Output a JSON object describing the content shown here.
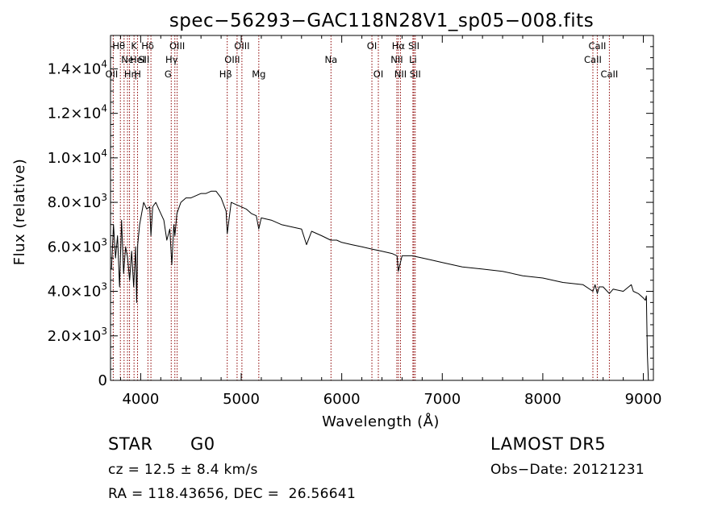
{
  "chart_data": {
    "type": "line",
    "title": "spec−56293−GAC118N28V1_sp05−008.fits",
    "xlabel": "Wavelength (Å)",
    "ylabel": "Flux (relative)",
    "xlim": [
      3700,
      9100
    ],
    "ylim": [
      0,
      15500
    ],
    "grid": false,
    "x_ticks": [
      4000,
      5000,
      6000,
      7000,
      8000,
      9000
    ],
    "x_tick_labels": [
      "4000",
      "5000",
      "6000",
      "7000",
      "8000",
      "9000"
    ],
    "y_ticks": [
      0,
      2000,
      4000,
      6000,
      8000,
      10000,
      12000,
      14000
    ],
    "y_tick_labels": [
      {
        "mant": "0",
        "exp": ""
      },
      {
        "mant": "2.0×10",
        "exp": "3"
      },
      {
        "mant": "4.0×10",
        "exp": "3"
      },
      {
        "mant": "6.0×10",
        "exp": "3"
      },
      {
        "mant": "8.0×10",
        "exp": "3"
      },
      {
        "mant": "1.0×10",
        "exp": "4"
      },
      {
        "mant": "1.2×10",
        "exp": "4"
      },
      {
        "mant": "1.4×10",
        "exp": "4"
      }
    ],
    "line_color": "#000000",
    "marker_color": "#8b0000",
    "series": [
      {
        "x": [
          3710,
          3730,
          3750,
          3770,
          3790,
          3810,
          3830,
          3850,
          3870,
          3890,
          3910,
          3930,
          3950,
          3960,
          3970,
          3990,
          4010,
          4030,
          4060,
          4090,
          4102,
          4120,
          4150,
          4180,
          4200,
          4230,
          4260,
          4290,
          4310,
          4330,
          4340,
          4360,
          4400,
          4450,
          4500,
          4550,
          4600,
          4650,
          4700,
          4750,
          4800,
          4850,
          4861,
          4900,
          4950,
          5000,
          5050,
          5100,
          5150,
          5175,
          5200,
          5300,
          5400,
          5500,
          5600,
          5650,
          5700,
          5800,
          5890,
          5950,
          6000,
          6100,
          6200,
          6300,
          6400,
          6500,
          6550,
          6563,
          6600,
          6700,
          6800,
          6900,
          7000,
          7200,
          7400,
          7600,
          7800,
          8000,
          8200,
          8400,
          8498,
          8520,
          8542,
          8560,
          8600,
          8662,
          8700,
          8800,
          8880,
          8900,
          8950,
          9000,
          9020,
          9030,
          9040,
          9050
        ],
        "y": [
          5000,
          7000,
          5500,
          6500,
          4200,
          7200,
          4800,
          6000,
          5500,
          4500,
          5800,
          4200,
          6000,
          3500,
          6100,
          7000,
          7500,
          8000,
          7700,
          7800,
          6500,
          7800,
          8000,
          7700,
          7500,
          7200,
          6300,
          6800,
          5200,
          7000,
          6500,
          7500,
          8000,
          8200,
          8200,
          8300,
          8400,
          8400,
          8500,
          8500,
          8200,
          7600,
          6600,
          8000,
          7900,
          7800,
          7700,
          7500,
          7400,
          6800,
          7300,
          7200,
          7000,
          6900,
          6800,
          6100,
          6700,
          6500,
          6300,
          6300,
          6200,
          6100,
          6000,
          5900,
          5800,
          5700,
          5600,
          4900,
          5600,
          5600,
          5500,
          5400,
          5300,
          5100,
          5000,
          4900,
          4700,
          4600,
          4400,
          4300,
          4000,
          4300,
          3900,
          4200,
          4200,
          3900,
          4100,
          4000,
          4300,
          4000,
          3900,
          3700,
          3600,
          3800,
          1200,
          0
        ]
      }
    ],
    "lines": [
      {
        "wl": 3727,
        "label": "OII",
        "row": 2,
        "dx": -2
      },
      {
        "wl": 3798,
        "label": "Hθ",
        "row": 0,
        "dx": -2
      },
      {
        "wl": 3835,
        "label": "Hη",
        "row": 2,
        "dx": 8
      },
      {
        "wl": 3869,
        "label": "Ne",
        "row": 1,
        "dx": 0
      },
      {
        "wl": 3889,
        "label": "HeI",
        "row": 1,
        "dx": 10
      },
      {
        "wl": 3934,
        "label": "K",
        "row": 0,
        "dx": 0
      },
      {
        "wl": 3969,
        "label": "H",
        "row": 2,
        "dx": 0
      },
      {
        "wl": 4072,
        "label": "SII",
        "row": 1,
        "dx": -5
      },
      {
        "wl": 4102,
        "label": "Hδ",
        "row": 0,
        "dx": -4
      },
      {
        "wl": 4304,
        "label": "G",
        "row": 2,
        "dx": -4
      },
      {
        "wl": 4340,
        "label": "Hγ",
        "row": 1,
        "dx": -4
      },
      {
        "wl": 4363,
        "label": "OIII",
        "row": 0,
        "dx": 0
      },
      {
        "wl": 4861,
        "label": "Hβ",
        "row": 2,
        "dx": -2
      },
      {
        "wl": 4959,
        "label": "OIII",
        "row": 1,
        "dx": -6
      },
      {
        "wl": 5007,
        "label": "OIII",
        "row": 0,
        "dx": 0
      },
      {
        "wl": 5175,
        "label": "Mg",
        "row": 2,
        "dx": 0
      },
      {
        "wl": 5893,
        "label": "Na",
        "row": 1,
        "dx": 0
      },
      {
        "wl": 6300,
        "label": "OI",
        "row": 0,
        "dx": 0
      },
      {
        "wl": 6364,
        "label": "OI",
        "row": 2,
        "dx": 0
      },
      {
        "wl": 6548,
        "label": "NII",
        "row": 1,
        "dx": 0
      },
      {
        "wl": 6563,
        "label": "Hα",
        "row": 0,
        "dx": 0
      },
      {
        "wl": 6584,
        "label": "NII",
        "row": 2,
        "dx": 0
      },
      {
        "wl": 6708,
        "label": "Li",
        "row": 1,
        "dx": 0
      },
      {
        "wl": 6717,
        "label": "SII",
        "row": 0,
        "dx": 0
      },
      {
        "wl": 6731,
        "label": "SII",
        "row": 2,
        "dx": 0
      },
      {
        "wl": 8498,
        "label": "CaII",
        "row": 1,
        "dx": 0
      },
      {
        "wl": 8542,
        "label": "CaII",
        "row": 0,
        "dx": 0
      },
      {
        "wl": 8662,
        "label": "CaII",
        "row": 2,
        "dx": 0
      }
    ]
  },
  "info": {
    "class": "STAR",
    "subclass": "G0",
    "survey": "LAMOST DR5",
    "cz": "cz = 12.5 ± 8.4 km/s",
    "obs_date": "Obs−Date: 20121231",
    "coords": "RA = 118.43656, DEC =  26.56641"
  }
}
